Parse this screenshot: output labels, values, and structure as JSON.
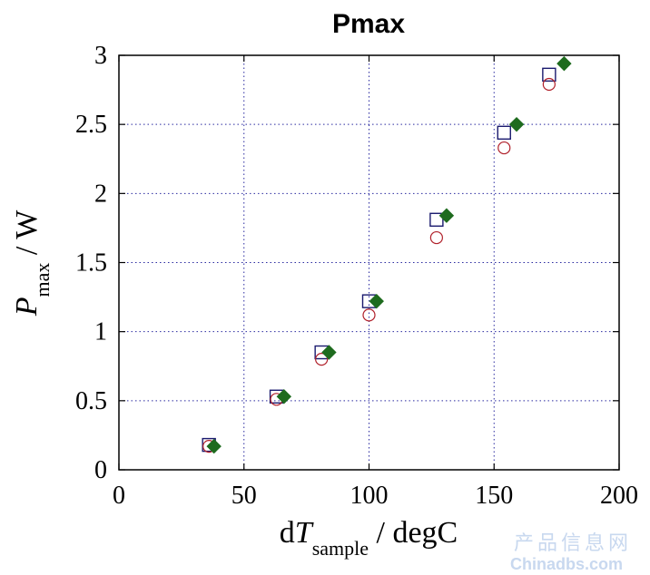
{
  "chart_data": {
    "type": "scatter",
    "title": "Pmax",
    "xlabel": {
      "main_prefix": "d",
      "main_italic": "T",
      "subscript": "sample",
      "suffix": " / degC"
    },
    "ylabel": {
      "main_italic": "P",
      "subscript": "max",
      "suffix": " / W"
    },
    "xlim": [
      0,
      200
    ],
    "ylim": [
      0,
      3
    ],
    "xticks": [
      0,
      50,
      100,
      150,
      200
    ],
    "yticks": [
      0,
      0.5,
      1,
      1.5,
      2,
      2.5,
      3
    ],
    "xtick_labels": [
      "0",
      "50",
      "100",
      "150",
      "200"
    ],
    "ytick_labels": [
      "0",
      "0.5",
      "1",
      "1.5",
      "2",
      "2.5",
      "3"
    ],
    "grid": true,
    "series": [
      {
        "marker": "square-open",
        "color": "#1a1a6e",
        "x": [
          36,
          63,
          81,
          100,
          127,
          154,
          172
        ],
        "y": [
          0.18,
          0.53,
          0.85,
          1.22,
          1.81,
          2.44,
          2.86
        ]
      },
      {
        "marker": "circle-open",
        "color": "#b0202a",
        "x": [
          36,
          63,
          81,
          100,
          127,
          154,
          172
        ],
        "y": [
          0.17,
          0.51,
          0.8,
          1.12,
          1.68,
          2.33,
          2.79
        ]
      },
      {
        "marker": "diamond-filled",
        "color": "#1e6b1e",
        "x": [
          38,
          66,
          84,
          103,
          131,
          159,
          178
        ],
        "y": [
          0.17,
          0.53,
          0.85,
          1.22,
          1.84,
          2.5,
          2.94
        ]
      }
    ]
  },
  "watermark": {
    "line1": "产品信息网",
    "line2": "Chinadbs.com"
  }
}
